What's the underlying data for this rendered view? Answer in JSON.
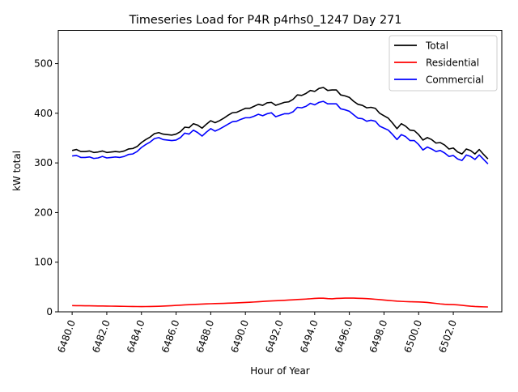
{
  "chart_data": {
    "type": "line",
    "title": "Timeseries Load for P4R p4rhs0_1247  Day 271",
    "xlabel": "Hour of Year",
    "ylabel": "kW total",
    "xlim": [
      6479.2,
      6504.8
    ],
    "ylim": [
      0,
      567
    ],
    "x_ticks": [
      6480,
      6482,
      6484,
      6486,
      6488,
      6490,
      6492,
      6494,
      6496,
      6498,
      6500,
      6502
    ],
    "x_tick_labels": [
      "6480.0",
      "6482.0",
      "6484.0",
      "6486.0",
      "6488.0",
      "6490.0",
      "6492.0",
      "6494.0",
      "6496.0",
      "6498.0",
      "6500.0",
      "6502.0"
    ],
    "y_ticks": [
      0,
      100,
      200,
      300,
      400,
      500
    ],
    "y_tick_labels": [
      "0",
      "100",
      "200",
      "300",
      "400",
      "500"
    ],
    "grid": false,
    "legend_position": "top-right",
    "x_start": 6480,
    "x_step": 0.25,
    "series": [
      {
        "name": "Total",
        "color": "#000000",
        "values": [
          325,
          327,
          323,
          323,
          324,
          321,
          322,
          324,
          321,
          322,
          323,
          322,
          324,
          328,
          329,
          333,
          341,
          347,
          352,
          359,
          361,
          358,
          357,
          356,
          358,
          363,
          372,
          371,
          379,
          376,
          370,
          378,
          385,
          381,
          385,
          390,
          396,
          401,
          402,
          406,
          410,
          410,
          414,
          418,
          416,
          421,
          422,
          416,
          419,
          422,
          423,
          428,
          437,
          436,
          440,
          446,
          444,
          450,
          452,
          446,
          447,
          447,
          437,
          435,
          432,
          424,
          418,
          416,
          411,
          412,
          410,
          400,
          395,
          390,
          380,
          369,
          379,
          374,
          366,
          365,
          357,
          346,
          351,
          347,
          340,
          341,
          336,
          328,
          330,
          322,
          318,
          328,
          325,
          318,
          327,
          317,
          308
        ]
      },
      {
        "name": "Residential",
        "color": "#ff0000",
        "values": [
          12.5,
          12.4,
          12.3,
          12.2,
          12.1,
          12.0,
          11.8,
          11.7,
          11.5,
          11.4,
          11.3,
          11.2,
          11.0,
          10.8,
          10.7,
          10.6,
          10.5,
          10.6,
          10.7,
          10.9,
          11.2,
          11.6,
          12.0,
          12.4,
          12.9,
          13.4,
          13.9,
          14.4,
          14.8,
          15.2,
          15.6,
          16.0,
          16.3,
          16.6,
          16.9,
          17.1,
          17.4,
          17.7,
          18.0,
          18.4,
          18.8,
          19.3,
          19.8,
          20.3,
          20.9,
          21.5,
          22.0,
          22.4,
          22.8,
          23.2,
          23.7,
          24.2,
          24.7,
          25.2,
          25.7,
          26.3,
          27.0,
          27.5,
          27.5,
          26.6,
          26.2,
          27.0,
          27.3,
          27.6,
          27.7,
          27.6,
          27.3,
          27.0,
          26.6,
          26.0,
          25.3,
          24.6,
          23.8,
          23.0,
          22.2,
          21.5,
          21.0,
          20.6,
          20.3,
          20.1,
          19.9,
          19.5,
          18.8,
          17.9,
          16.9,
          15.9,
          15.2,
          14.8,
          14.5,
          14.0,
          13.2,
          12.2,
          11.3,
          10.7,
          10.3,
          10.0,
          9.8
        ]
      },
      {
        "name": "Commercial",
        "color": "#0000ff",
        "values": [
          314,
          315,
          311,
          311,
          312,
          309,
          310,
          313,
          310,
          311,
          312,
          311,
          313,
          317,
          318,
          323,
          331,
          337,
          342,
          349,
          351,
          347,
          346,
          345,
          346,
          351,
          360,
          358,
          366,
          361,
          354,
          362,
          369,
          364,
          368,
          373,
          378,
          383,
          384,
          388,
          391,
          391,
          394,
          398,
          395,
          399,
          401,
          393,
          396,
          399,
          399,
          403,
          412,
          411,
          414,
          420,
          417,
          422,
          424,
          419,
          419,
          419,
          409,
          407,
          404,
          397,
          390,
          389,
          384,
          386,
          384,
          374,
          370,
          366,
          357,
          347,
          357,
          353,
          345,
          345,
          337,
          326,
          332,
          328,
          323,
          325,
          320,
          313,
          315,
          308,
          305,
          316,
          313,
          307,
          316,
          307,
          298
        ]
      }
    ]
  }
}
